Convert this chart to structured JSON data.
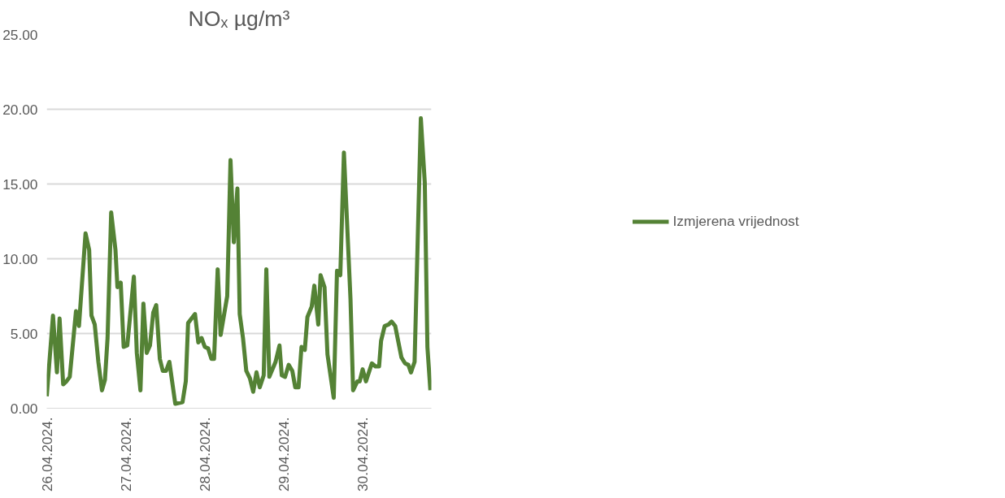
{
  "chart_data": {
    "type": "line",
    "title": "NOₓ µg/m³",
    "x": [
      "2024-04-26T00:00",
      "2024-04-26T01:54",
      "2024-04-26T03:06",
      "2024-04-26T03:54",
      "2024-04-26T05:00",
      "2024-04-26T06:00",
      "2024-04-26T07:00",
      "2024-04-26T08:54",
      "2024-04-26T09:48",
      "2024-04-26T11:48",
      "2024-04-26T12:54",
      "2024-04-26T13:36",
      "2024-04-26T14:36",
      "2024-04-26T15:42",
      "2024-04-26T16:48",
      "2024-04-26T17:42",
      "2024-04-26T18:30",
      "2024-04-26T19:36",
      "2024-04-26T20:54",
      "2024-04-26T21:30",
      "2024-04-26T22:30",
      "2024-04-26T23:24",
      "2024-04-27T00:30",
      "2024-04-27T02:30",
      "2024-04-27T03:24",
      "2024-04-27T04:30",
      "2024-04-27T05:24",
      "2024-04-27T06:24",
      "2024-04-27T07:24",
      "2024-04-27T08:24",
      "2024-04-27T09:18",
      "2024-04-27T10:24",
      "2024-04-27T11:18",
      "2024-04-27T12:18",
      "2024-04-27T13:18",
      "2024-04-27T15:06",
      "2024-04-27T17:18",
      "2024-04-27T18:18",
      "2024-04-27T19:00",
      "2024-04-27T21:06",
      "2024-04-27T22:06",
      "2024-04-27T23:06",
      "2024-04-28T00:06",
      "2024-04-28T01:06",
      "2024-04-28T02:06",
      "2024-04-28T02:54",
      "2024-04-28T04:00",
      "2024-04-28T04:54",
      "2024-04-28T06:54",
      "2024-04-28T07:54",
      "2024-04-28T08:54",
      "2024-04-28T10:00",
      "2024-04-28T10:42",
      "2024-04-28T11:42",
      "2024-04-28T12:42",
      "2024-04-28T13:48",
      "2024-04-28T14:48",
      "2024-04-28T15:48",
      "2024-04-28T16:48",
      "2024-04-28T18:00",
      "2024-04-28T18:48",
      "2024-04-28T19:42",
      "2024-04-28T21:36",
      "2024-04-28T22:48",
      "2024-04-28T23:30",
      "2024-04-29T00:30",
      "2024-04-29T01:36",
      "2024-04-29T02:42",
      "2024-04-29T03:36",
      "2024-04-29T04:36",
      "2024-04-29T05:30",
      "2024-04-29T06:30",
      "2024-04-29T07:18",
      "2024-04-29T08:36",
      "2024-04-29T09:24",
      "2024-04-29T10:36",
      "2024-04-29T11:18",
      "2024-04-29T12:30",
      "2024-04-29T13:24",
      "2024-04-29T15:18",
      "2024-04-29T16:18",
      "2024-04-29T17:18",
      "2024-04-29T18:24",
      "2024-04-29T20:24",
      "2024-04-29T21:12",
      "2024-04-29T22:30",
      "2024-04-29T23:12",
      "2024-04-30T00:06",
      "2024-04-30T01:06",
      "2024-04-30T02:54",
      "2024-04-30T04:00",
      "2024-04-30T05:06",
      "2024-04-30T05:42",
      "2024-04-30T06:48",
      "2024-04-30T08:00",
      "2024-04-30T08:54",
      "2024-04-30T10:00",
      "2024-04-30T11:54",
      "2024-04-30T13:00",
      "2024-04-30T14:00",
      "2024-04-30T14:48",
      "2024-04-30T15:54",
      "2024-04-30T17:48",
      "2024-04-30T19:00",
      "2024-04-30T19:48",
      "2024-04-30T20:42"
    ],
    "series": [
      {
        "name": "Izmjerena vrijednost",
        "color": "#548235",
        "values": [
          0.8,
          6.2,
          2.4,
          6.0,
          1.6,
          1.8,
          2.1,
          6.5,
          5.5,
          11.7,
          10.6,
          6.2,
          5.6,
          3.1,
          1.2,
          1.9,
          4.7,
          13.1,
          10.6,
          8.1,
          8.4,
          4.1,
          4.2,
          8.8,
          3.7,
          1.2,
          7.0,
          3.7,
          4.2,
          6.4,
          6.9,
          3.3,
          2.5,
          2.5,
          3.1,
          0.3,
          0.4,
          1.8,
          5.7,
          6.3,
          4.4,
          4.7,
          4.1,
          4.0,
          3.3,
          3.3,
          9.3,
          4.9,
          7.5,
          16.6,
          11.1,
          14.7,
          6.3,
          4.7,
          2.5,
          2.0,
          1.1,
          2.4,
          1.4,
          2.2,
          9.3,
          2.1,
          3.1,
          4.2,
          2.2,
          2.1,
          2.9,
          2.5,
          1.4,
          1.4,
          4.1,
          3.9,
          6.1,
          6.8,
          8.2,
          5.6,
          8.9,
          8.1,
          3.6,
          0.7,
          9.2,
          8.9,
          17.1,
          7.3,
          1.2,
          1.8,
          1.8,
          2.6,
          1.8,
          3.0,
          2.8,
          2.8,
          4.5,
          5.5,
          5.6,
          5.8,
          5.5,
          3.4,
          3.0,
          2.9,
          2.4,
          3.1,
          19.4,
          15.1,
          4.1,
          1.2
        ]
      }
    ],
    "xlim": [
      "2024-04-26T00:00",
      "2024-04-30T21:00"
    ],
    "xticks": [
      {
        "value": "2024-04-26",
        "label": "26.04.2024."
      },
      {
        "value": "2024-04-27",
        "label": "27.04.2024."
      },
      {
        "value": "2024-04-28",
        "label": "28.04.2024."
      },
      {
        "value": "2024-04-29",
        "label": "29.04.2024."
      },
      {
        "value": "2024-04-30",
        "label": "30.04.2024."
      }
    ],
    "ylim": [
      0,
      25
    ],
    "yticks": [
      {
        "value": 0,
        "label": "0.00"
      },
      {
        "value": 5,
        "label": "5.00"
      },
      {
        "value": 10,
        "label": "10.00"
      },
      {
        "value": 15,
        "label": "15.00"
      },
      {
        "value": 20,
        "label": "20.00"
      },
      {
        "value": 25,
        "label": "25.00"
      }
    ],
    "grid": "y",
    "legend": "right",
    "line_style": "solid",
    "marker": "none"
  }
}
